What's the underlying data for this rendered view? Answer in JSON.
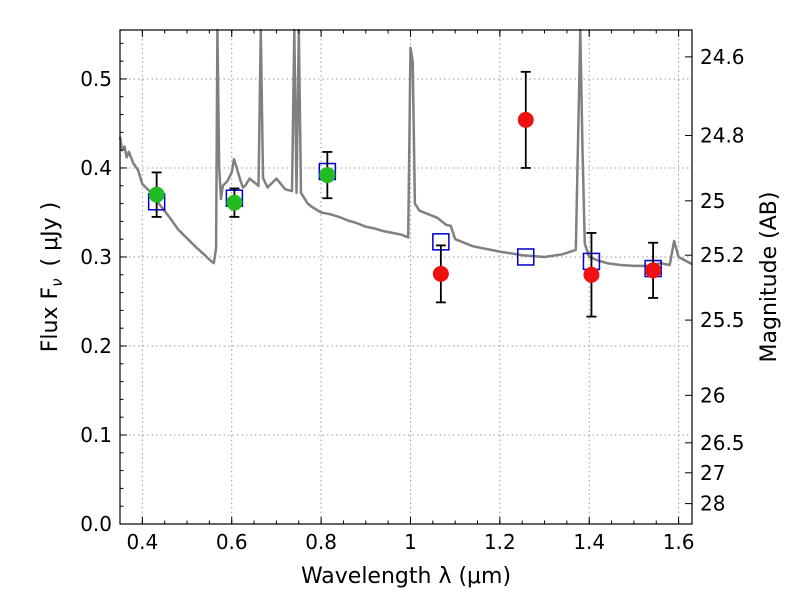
{
  "chart_data": {
    "type": "scatter",
    "xlabel": "Wavelength  λ (μm)",
    "ylabel": "Flux  F",
    "ylabel_sub": "ν",
    "ylabel_unit": "( μJy )",
    "y2label": "Magnitude (AB)",
    "xlim": [
      0.35,
      1.63
    ],
    "ylim": [
      0.0,
      0.555
    ],
    "grid": true,
    "x_ticks": [
      {
        "value": 0.4,
        "label": "0.4"
      },
      {
        "value": 0.6,
        "label": "0.6"
      },
      {
        "value": 0.8,
        "label": "0.8"
      },
      {
        "value": 1.0,
        "label": "1"
      },
      {
        "value": 1.2,
        "label": "1.2"
      },
      {
        "value": 1.4,
        "label": "1.4"
      },
      {
        "value": 1.6,
        "label": "1.6"
      }
    ],
    "y_ticks": [
      {
        "value": 0.0,
        "label": "0.0"
      },
      {
        "value": 0.1,
        "label": "0.1"
      },
      {
        "value": 0.2,
        "label": "0.2"
      },
      {
        "value": 0.3,
        "label": "0.3"
      },
      {
        "value": 0.4,
        "label": "0.4"
      },
      {
        "value": 0.5,
        "label": "0.5"
      }
    ],
    "mag_ticks": [
      "24.6",
      "24.8",
      "25",
      "25.2",
      "25.5",
      "26",
      "26.5",
      "27",
      "28"
    ],
    "colors": {
      "sed": "#808080",
      "model_box": "#0000cc",
      "green": "#22bb22",
      "red": "#ee1111",
      "errorbar": "#000000",
      "grid": "#999999"
    },
    "series": [
      {
        "marker": "hollow-square",
        "color": "#0000cc",
        "points": [
          {
            "x": 0.432,
            "y": 0.362
          },
          {
            "x": 0.606,
            "y": 0.366
          },
          {
            "x": 0.814,
            "y": 0.396
          },
          {
            "x": 1.068,
            "y": 0.317
          },
          {
            "x": 1.258,
            "y": 0.3
          },
          {
            "x": 1.405,
            "y": 0.295
          },
          {
            "x": 1.543,
            "y": 0.287
          }
        ]
      },
      {
        "marker": "filled-circle",
        "color": "#22bb22",
        "points": [
          {
            "x": 0.432,
            "y": 0.37,
            "err": 0.025
          },
          {
            "x": 0.606,
            "y": 0.361,
            "err": 0.016
          },
          {
            "x": 0.814,
            "y": 0.392,
            "err": 0.026
          }
        ]
      },
      {
        "marker": "filled-circle",
        "color": "#ee1111",
        "points": [
          {
            "x": 1.068,
            "y": 0.281,
            "err": 0.032
          },
          {
            "x": 1.258,
            "y": 0.454,
            "err": 0.054
          },
          {
            "x": 1.405,
            "y": 0.28,
            "err": 0.047
          },
          {
            "x": 1.543,
            "y": 0.285,
            "err": 0.031
          }
        ]
      }
    ],
    "sed_curve": {
      "color": "#808080",
      "x": [
        0.35,
        0.355,
        0.36,
        0.365,
        0.37,
        0.38,
        0.39,
        0.4,
        0.42,
        0.44,
        0.46,
        0.48,
        0.5,
        0.52,
        0.54,
        0.55,
        0.56,
        0.565,
        0.568,
        0.572,
        0.576,
        0.58,
        0.59,
        0.6,
        0.605,
        0.61,
        0.62,
        0.625,
        0.63,
        0.64,
        0.65,
        0.66,
        0.665,
        0.67,
        0.68,
        0.7,
        0.72,
        0.735,
        0.74,
        0.745,
        0.75,
        0.755,
        0.76,
        0.77,
        0.78,
        0.8,
        0.82,
        0.84,
        0.86,
        0.88,
        0.9,
        0.92,
        0.94,
        0.96,
        0.98,
        0.995,
        1.0,
        1.005,
        1.01,
        1.02,
        1.04,
        1.06,
        1.08,
        1.09,
        1.1,
        1.14,
        1.2,
        1.25,
        1.3,
        1.34,
        1.37,
        1.38,
        1.385,
        1.39,
        1.4,
        1.42,
        1.44,
        1.47,
        1.5,
        1.53,
        1.56,
        1.58,
        1.59,
        1.6,
        1.63
      ],
      "y": [
        0.435,
        0.42,
        0.424,
        0.412,
        0.418,
        0.405,
        0.398,
        0.382,
        0.372,
        0.358,
        0.345,
        0.331,
        0.321,
        0.311,
        0.302,
        0.297,
        0.293,
        0.31,
        0.555,
        0.4,
        0.365,
        0.38,
        0.385,
        0.395,
        0.41,
        0.402,
        0.385,
        0.378,
        0.38,
        0.388,
        0.384,
        0.38,
        0.555,
        0.389,
        0.378,
        0.388,
        0.376,
        0.374,
        0.555,
        0.372,
        0.555,
        0.372,
        0.368,
        0.36,
        0.356,
        0.35,
        0.348,
        0.345,
        0.341,
        0.338,
        0.334,
        0.332,
        0.329,
        0.327,
        0.325,
        0.322,
        0.535,
        0.52,
        0.36,
        0.352,
        0.348,
        0.344,
        0.336,
        0.335,
        0.32,
        0.312,
        0.306,
        0.302,
        0.3,
        0.303,
        0.308,
        0.555,
        0.42,
        0.315,
        0.3,
        0.296,
        0.293,
        0.291,
        0.29,
        0.29,
        0.293,
        0.291,
        0.318,
        0.3,
        0.292
      ]
    }
  }
}
